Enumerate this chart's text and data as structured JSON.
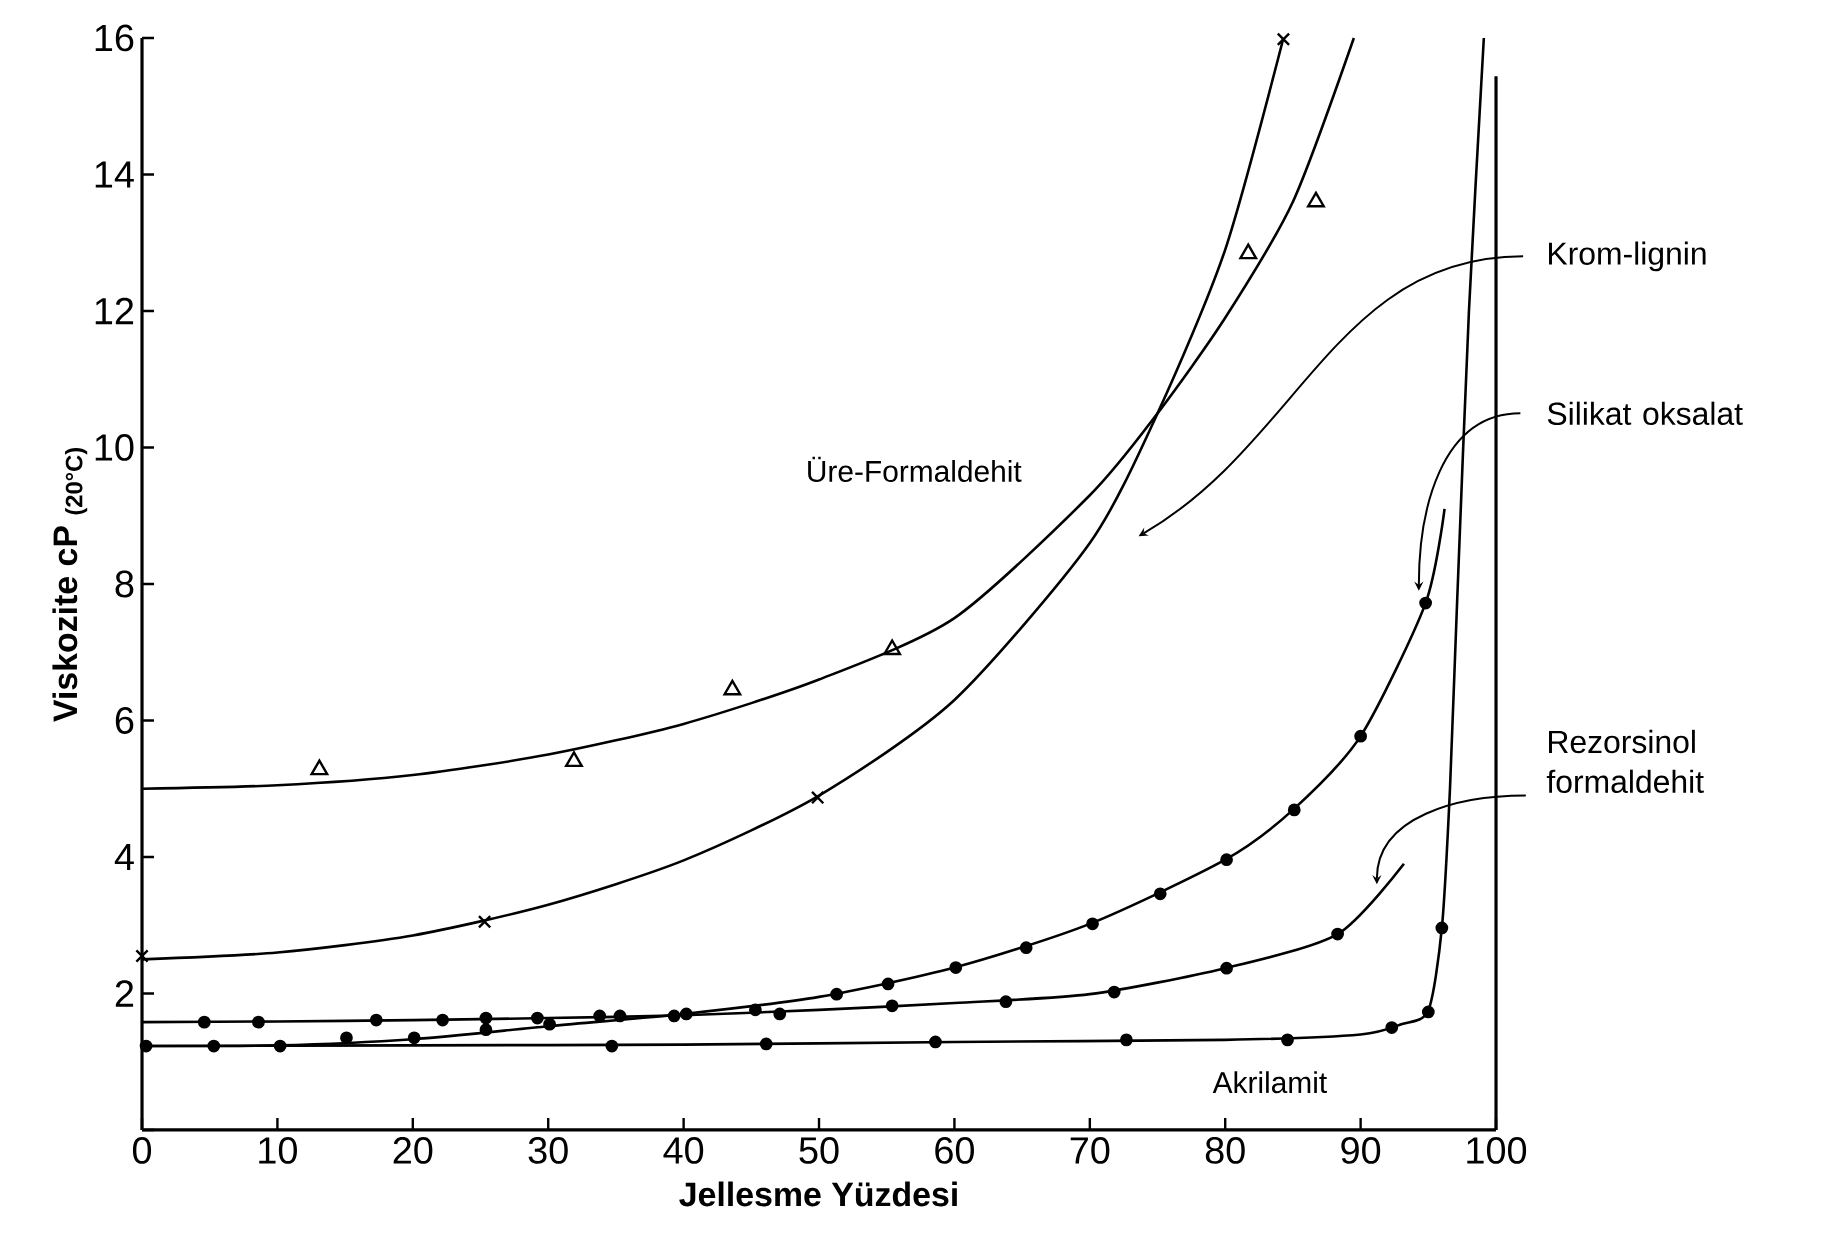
{
  "chart_data": {
    "type": "line",
    "xlabel": "Jellesme Yüzdesi",
    "ylabel": "Viskozite cP $_{(20°C)}$",
    "xlim": [
      0,
      100
    ],
    "ylim": [
      0,
      16
    ],
    "xticks": [
      0,
      10,
      20,
      30,
      40,
      50,
      60,
      70,
      80,
      90,
      100
    ],
    "yticks": [
      {
        "value": 0,
        "label": null
      },
      2,
      4,
      6,
      8,
      10,
      12,
      14,
      16
    ],
    "grid": false,
    "legend": false,
    "line_style": "solid",
    "series": [
      {
        "name": "Üre-Formaldehit",
        "color": "#000000",
        "marker": "none",
        "x": [
          0,
          10,
          20,
          30,
          40,
          50,
          60,
          70,
          75,
          80,
          85,
          89.5
        ],
        "values": [
          5.0,
          5.05,
          5.2,
          5.5,
          5.95,
          6.6,
          7.5,
          9.3,
          10.5,
          11.9,
          13.6,
          16
        ]
      },
      {
        "name": "Krom-lignin",
        "color": "#000000",
        "marker": "none",
        "x": [
          0,
          10,
          20,
          30,
          40,
          50,
          60,
          70,
          75,
          80,
          84.3
        ],
        "values": [
          2.5,
          2.6,
          2.85,
          3.3,
          3.95,
          4.9,
          6.3,
          8.6,
          10.5,
          12.9,
          16
        ]
      },
      {
        "name": "Silikat oksalat",
        "color": "#000000",
        "marker": "none",
        "x": [
          0,
          10,
          20,
          30,
          40,
          50,
          60,
          70,
          80,
          85,
          90,
          94.8,
          96.2
        ],
        "values": [
          1.23,
          1.24,
          1.33,
          1.52,
          1.7,
          1.95,
          2.38,
          3.02,
          3.96,
          4.69,
          5.77,
          7.72,
          9.1
        ]
      },
      {
        "name": "Rezorsinol formaldehit",
        "color": "#000000",
        "marker": "none",
        "x": [
          0,
          10,
          20,
          30,
          40,
          50,
          60,
          70,
          80,
          88.3,
          93.2
        ],
        "values": [
          1.58,
          1.59,
          1.61,
          1.64,
          1.68,
          1.76,
          1.86,
          1.99,
          2.37,
          2.87,
          3.9
        ]
      },
      {
        "name": "Akrilamit",
        "color": "#000000",
        "marker": "none",
        "x": [
          0,
          20,
          40,
          60,
          80,
          90,
          93,
          95,
          96,
          96.6,
          97.1,
          98,
          99.1
        ],
        "values": [
          1.23,
          1.24,
          1.25,
          1.29,
          1.32,
          1.4,
          1.55,
          1.75,
          2.96,
          5,
          7.6,
          12,
          16
        ]
      },
      {
        "type": "scatter",
        "color": "#000000",
        "marker": "triangle",
        "x": [
          13.1,
          31.9,
          43.6,
          55.4,
          81.7,
          86.7
        ],
        "values": [
          5.28,
          5.4,
          6.45,
          7.04,
          12.84,
          13.6
        ]
      },
      {
        "type": "scatter",
        "color": "#000000",
        "marker": "cross",
        "x": [
          0,
          25.3,
          49.9,
          84.3
        ],
        "values": [
          2.55,
          3.05,
          4.87,
          15.98
        ]
      },
      {
        "type": "scatter",
        "color": "#000000",
        "marker": "circle",
        "x": [
          5.3,
          10.2,
          15.1,
          20.1,
          25.4,
          30.1,
          35.3,
          40.2,
          51.3,
          55.1,
          60.1,
          65.3,
          70.2,
          75.2,
          80.1,
          85.1,
          90.0,
          94.8,
          96.0
        ],
        "values": [
          1.23,
          1.23,
          1.35,
          1.35,
          1.47,
          1.55,
          1.67,
          1.7,
          1.99,
          2.14,
          2.38,
          2.67,
          3.02,
          3.46,
          3.96,
          4.69,
          5.77,
          7.72,
          2.96
        ]
      },
      {
        "type": "scatter",
        "color": "#000000",
        "marker": "circle",
        "x": [
          4.6,
          8.6,
          17.3,
          22.2,
          25.4,
          29.2,
          33.8,
          39.3,
          45.3,
          47.1,
          55.4,
          63.8,
          71.8,
          80.1,
          88.3
        ],
        "values": [
          1.58,
          1.58,
          1.61,
          1.61,
          1.64,
          1.64,
          1.67,
          1.67,
          1.76,
          1.7,
          1.82,
          1.88,
          2.02,
          2.37,
          2.87
        ]
      },
      {
        "type": "scatter",
        "color": "#000000",
        "marker": "circle",
        "x": [
          0.3,
          34.7,
          46.1,
          58.6,
          72.7,
          84.6,
          92.3,
          95.0
        ],
        "values": [
          1.23,
          1.23,
          1.26,
          1.29,
          1.32,
          1.32,
          1.5,
          1.73
        ]
      }
    ]
  }
}
